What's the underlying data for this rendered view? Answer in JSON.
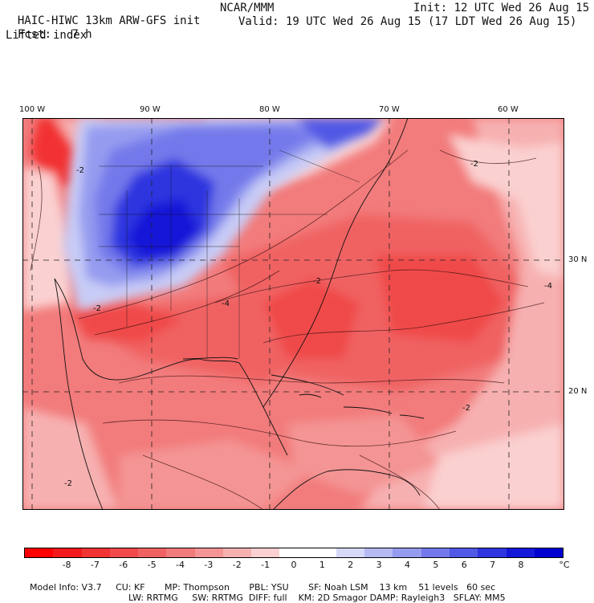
{
  "header": {
    "title": "HAIC-HIWC 13km ARW-GFS init",
    "org": "NCAR/MMM",
    "init": "Init: 12 UTC Wed 26 Aug 15",
    "fcst_label": "Fcst:",
    "fcst_value": "7 h",
    "valid": "Valid: 19 UTC Wed 26 Aug 15 (17 LDT Wed 26 Aug 15)",
    "field": "Lifted index"
  },
  "map": {
    "lon_labels": [
      "100 W",
      "90 W",
      "80 W",
      "70 W",
      "60 W"
    ],
    "lat_labels": [
      "30 N",
      "20 N"
    ],
    "contour_labels": [
      "-2",
      "-2",
      "-4",
      "-2",
      "-2",
      "-4",
      "-2",
      "-2"
    ],
    "colors": {
      "neg_strong": "#ee2222",
      "neg_mid": "#f06060",
      "neg_light": "#f8b0b0",
      "neutral": "#ffffff",
      "pos_light": "#c8ccf6",
      "pos_mid": "#6f77ea",
      "pos_strong": "#1a1ad8"
    }
  },
  "colorbar": {
    "labels": [
      "-8",
      "-7",
      "-6",
      "-5",
      "-4",
      "-3",
      "-2",
      "-1",
      "0",
      "1",
      "2",
      "3",
      "4",
      "5",
      "6",
      "7",
      "8"
    ],
    "unit": "°C",
    "colors": [
      "#ff0000",
      "#f21a1a",
      "#f23333",
      "#f04a4a",
      "#f06262",
      "#f27b7b",
      "#f49494",
      "#f7b0b0",
      "#fbd0d0",
      "#ffffff",
      "#ffffff",
      "#d6d9f8",
      "#b5baf3",
      "#959bef",
      "#7379ea",
      "#5158e5",
      "#2f36df",
      "#1418d8",
      "#0000d0"
    ]
  },
  "model_info": {
    "line1": [
      "Model Info: V3.7",
      "CU: KF",
      "MP: Thompson",
      "PBL: YSU",
      "SF: Noah LSM",
      "13 km",
      "51 levels",
      "60 sec"
    ],
    "line2": [
      "LW: RRTMG",
      "SW: RRTMG",
      "DIFF: full",
      "KM: 2D Smagor",
      "DAMP: Rayleigh3",
      "SFLAY: MM5"
    ]
  }
}
